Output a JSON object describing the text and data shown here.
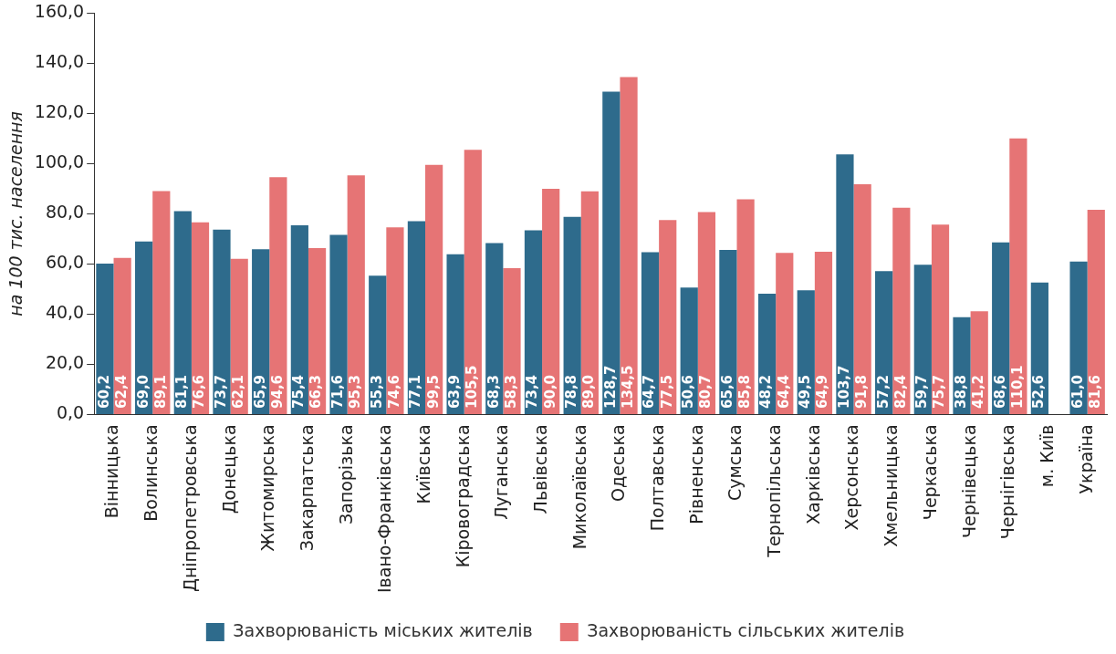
{
  "chart_data": {
    "type": "bar",
    "ylabel": "на 100 тис. населення",
    "categories": [
      "Вінницька",
      "Волинська",
      "Дніпропетровська",
      "Донецька",
      "Житомирська",
      "Закарпатська",
      "Запорізька",
      "Івано-Франківська",
      "Київська",
      "Кіровоградська",
      "Луганська",
      "Львівська",
      "Миколаївська",
      "Одеська",
      "Полтавська",
      "Рівненська",
      "Сумська",
      "Тернопільська",
      "Харківська",
      "Херсонська",
      "Хмельницька",
      "Черкаська",
      "Чернівецька",
      "Чернігівська",
      "м. Київ",
      "Україна"
    ],
    "series": [
      {
        "name": "Захворюваність міських жителів",
        "color": "#2e6b8c",
        "values": [
          60.2,
          69.0,
          81.1,
          73.7,
          65.9,
          75.4,
          71.6,
          55.3,
          77.1,
          63.9,
          68.3,
          73.4,
          78.8,
          128.7,
          64.7,
          50.6,
          65.6,
          48.2,
          49.5,
          103.7,
          57.2,
          59.7,
          38.8,
          68.6,
          52.6,
          61.0
        ],
        "value_labels": [
          "60,2",
          "69,0",
          "81,1",
          "73,7",
          "65,9",
          "75,4",
          "71,6",
          "55,3",
          "77,1",
          "63,9",
          "68,3",
          "73,4",
          "78,8",
          "128,7",
          "64,7",
          "50,6",
          "65,6",
          "48,2",
          "49,5",
          "103,7",
          "57,2",
          "59,7",
          "38,8",
          "68,6",
          "52,6",
          "61,0"
        ]
      },
      {
        "name": "Захворюваність сільських жителів",
        "color": "#e67475",
        "values": [
          62.4,
          89.1,
          76.6,
          62.1,
          94.6,
          66.3,
          95.3,
          74.6,
          99.5,
          105.5,
          58.3,
          90.0,
          89.0,
          134.5,
          77.5,
          80.7,
          85.8,
          64.4,
          64.9,
          91.8,
          82.4,
          75.7,
          41.2,
          110.1,
          null,
          81.6
        ],
        "value_labels": [
          "62,4",
          "89,1",
          "76,6",
          "62,1",
          "94,6",
          "66,3",
          "95,3",
          "74,6",
          "99,5",
          "105,5",
          "58,3",
          "90,0",
          "89,0",
          "134,5",
          "77,5",
          "80,7",
          "85,8",
          "64,4",
          "64,9",
          "91,8",
          "82,4",
          "75,7",
          "41,2",
          "110,1",
          null,
          "81,6"
        ]
      }
    ],
    "ylim": [
      0,
      160
    ],
    "yticks": [
      {
        "value": 0,
        "label": "0,0"
      },
      {
        "value": 20,
        "label": "20,0"
      },
      {
        "value": 40,
        "label": "40,0"
      },
      {
        "value": 60,
        "label": "60,0"
      },
      {
        "value": 80,
        "label": "80,0"
      },
      {
        "value": 100,
        "label": "100,0"
      },
      {
        "value": 120,
        "label": "120,0"
      },
      {
        "value": 140,
        "label": "140,0"
      },
      {
        "value": 160,
        "label": "160,0"
      }
    ],
    "grid": false,
    "legend": "bottom"
  }
}
